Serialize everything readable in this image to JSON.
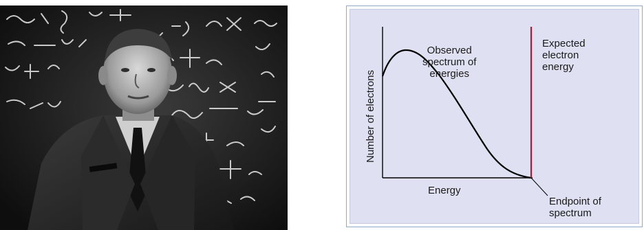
{
  "photo": {
    "subject": "portrait-photograph-man-in-suit-at-chalkboard"
  },
  "diagram": {
    "y_axis_label": "Number of electrons",
    "x_axis_label": "Energy",
    "observed_label": "Observed\nspectrum of\nenergies",
    "expected_label": "Expected\nelectron\nenergy",
    "endpoint_label": "Endpoint of\nspectrum",
    "colors": {
      "panel_background": "#dfe1f3",
      "curve": "#000000",
      "expected_line": "#c8102e",
      "axis": "#000000"
    }
  }
}
